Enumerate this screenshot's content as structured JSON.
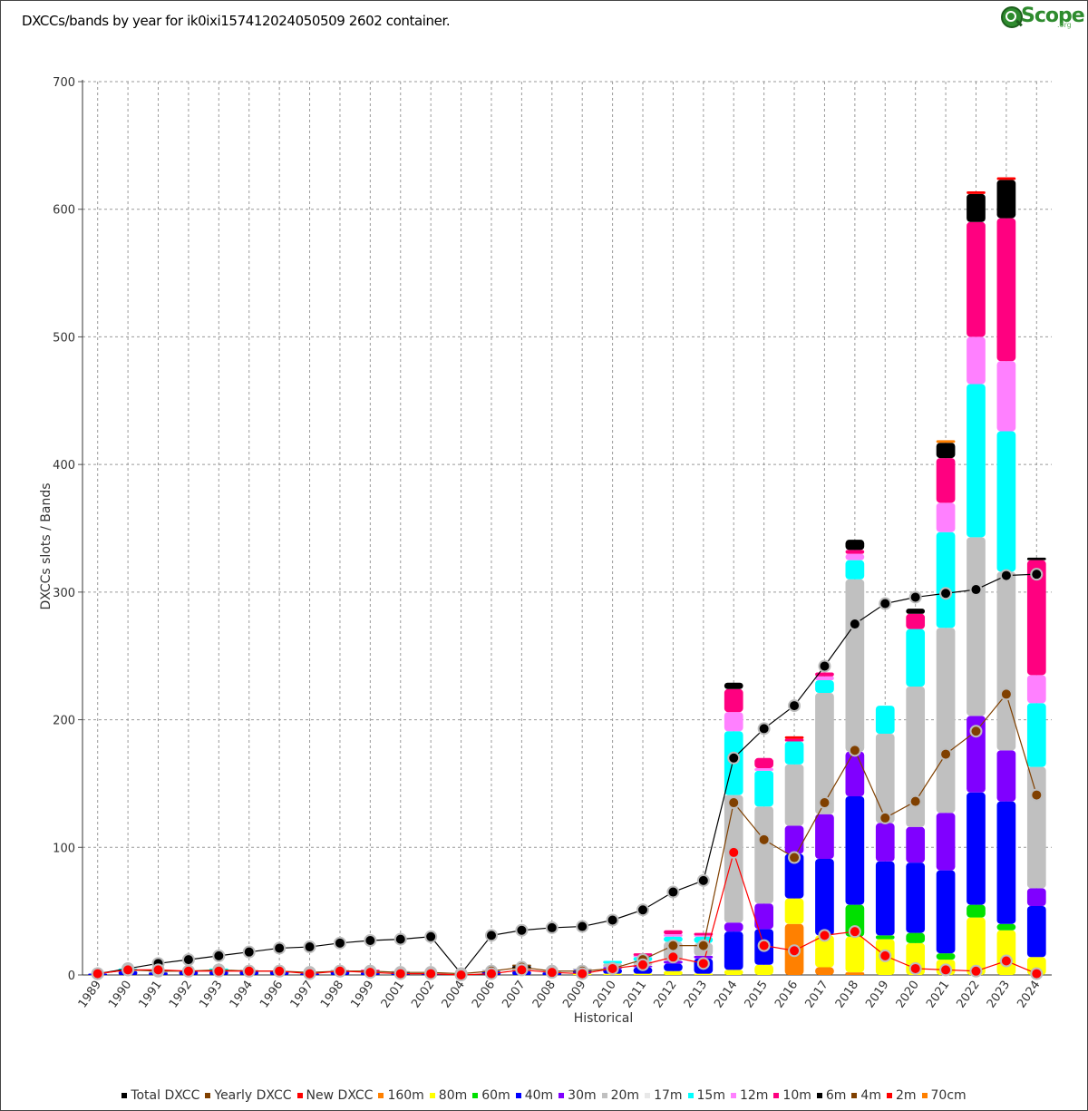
{
  "chart_data": {
    "type": "bar",
    "title": "DXCCs/bands by year for ik0ixi157412024050509 2602 container.",
    "xlabel": "Historical",
    "ylabel": "DXCCs slots / Bands",
    "ylim": [
      0,
      700
    ],
    "yticks": [
      0,
      100,
      200,
      300,
      400,
      500,
      600,
      700
    ],
    "grid": true,
    "legend_position": "bottom",
    "categories": [
      "1989",
      "1990",
      "1991",
      "1992",
      "1993",
      "1994",
      "1996",
      "1997",
      "1998",
      "1999",
      "2001",
      "2002",
      "2004",
      "2006",
      "2007",
      "2008",
      "2009",
      "2010",
      "2011",
      "2012",
      "2013",
      "2014",
      "2015",
      "2016",
      "2017",
      "2018",
      "2019",
      "2020",
      "2021",
      "2022",
      "2023",
      "2024"
    ],
    "band_series": [
      {
        "name": "160m",
        "color": "#ff8000",
        "values": [
          0,
          0,
          0,
          0,
          0,
          0,
          0,
          0,
          0,
          0,
          0,
          0,
          0,
          0,
          0,
          0,
          0,
          0,
          0,
          0,
          0,
          0,
          0,
          40,
          6,
          2,
          0,
          0,
          0,
          0,
          0,
          0
        ]
      },
      {
        "name": "80m",
        "color": "#ffff00",
        "values": [
          0,
          0,
          0,
          0,
          0,
          0,
          0,
          0,
          0,
          0,
          0,
          0,
          0,
          0,
          0,
          0,
          1,
          1,
          1,
          3,
          1,
          4,
          8,
          20,
          25,
          28,
          28,
          25,
          12,
          45,
          35,
          14
        ]
      },
      {
        "name": "60m",
        "color": "#00e000",
        "values": [
          0,
          0,
          0,
          0,
          0,
          0,
          0,
          0,
          0,
          0,
          0,
          0,
          0,
          0,
          0,
          0,
          0,
          0,
          0,
          0,
          0,
          0,
          0,
          0,
          0,
          25,
          3,
          8,
          5,
          10,
          5,
          0
        ]
      },
      {
        "name": "40m",
        "color": "#0000ff",
        "values": [
          1,
          3,
          2,
          3,
          3,
          3,
          3,
          1,
          3,
          2,
          2,
          1,
          0,
          3,
          3,
          2,
          3,
          4,
          5,
          6,
          12,
          30,
          28,
          35,
          60,
          85,
          58,
          55,
          65,
          88,
          96,
          40
        ]
      },
      {
        "name": "30m",
        "color": "#8000ff",
        "values": [
          0,
          0,
          0,
          0,
          0,
          0,
          0,
          0,
          0,
          0,
          0,
          0,
          0,
          0,
          0,
          0,
          0,
          1,
          1,
          2,
          2,
          7,
          20,
          22,
          35,
          35,
          30,
          28,
          45,
          60,
          40,
          14
        ]
      },
      {
        "name": "20m",
        "color": "#c0c0c0",
        "values": [
          0,
          1,
          1,
          0,
          1,
          1,
          0,
          0,
          1,
          1,
          1,
          0,
          0,
          1,
          2,
          1,
          1,
          3,
          4,
          15,
          10,
          100,
          76,
          48,
          95,
          135,
          70,
          110,
          145,
          140,
          140,
          95
        ]
      },
      {
        "name": "17m",
        "color": "#e8e8e8",
        "values": [
          0,
          0,
          0,
          0,
          0,
          0,
          0,
          0,
          0,
          0,
          0,
          0,
          0,
          0,
          0,
          0,
          0,
          0,
          0,
          0,
          0,
          0,
          0,
          0,
          0,
          0,
          0,
          0,
          0,
          0,
          0,
          0
        ]
      },
      {
        "name": "15m",
        "color": "#00ffff",
        "values": [
          0,
          1,
          0,
          0,
          1,
          0,
          0,
          0,
          0,
          0,
          0,
          0,
          0,
          0,
          0,
          0,
          0,
          2,
          3,
          4,
          5,
          50,
          28,
          18,
          10,
          15,
          22,
          45,
          75,
          120,
          110,
          50
        ]
      },
      {
        "name": "12m",
        "color": "#ff80ff",
        "values": [
          0,
          0,
          0,
          0,
          0,
          0,
          0,
          0,
          0,
          0,
          0,
          0,
          0,
          0,
          0,
          0,
          0,
          0,
          1,
          2,
          1,
          15,
          2,
          0,
          3,
          5,
          0,
          0,
          23,
          37,
          55,
          22
        ]
      },
      {
        "name": "10m",
        "color": "#ff0080",
        "values": [
          0,
          0,
          0,
          0,
          0,
          0,
          0,
          0,
          0,
          1,
          0,
          0,
          0,
          0,
          0,
          0,
          0,
          0,
          2,
          3,
          2,
          18,
          8,
          2,
          3,
          3,
          0,
          12,
          35,
          90,
          112,
          90
        ]
      },
      {
        "name": "6m",
        "color": "#000000",
        "values": [
          0,
          0,
          0,
          0,
          0,
          0,
          0,
          0,
          0,
          0,
          0,
          0,
          0,
          0,
          2,
          0,
          0,
          0,
          0,
          0,
          0,
          5,
          0,
          0,
          0,
          8,
          0,
          4,
          12,
          22,
          30,
          2
        ]
      },
      {
        "name": "4m",
        "color": "#804000",
        "values": [
          0,
          0,
          0,
          0,
          0,
          0,
          0,
          0,
          0,
          0,
          0,
          0,
          0,
          0,
          1,
          0,
          0,
          0,
          0,
          0,
          0,
          0,
          0,
          0,
          0,
          0,
          0,
          0,
          0,
          0,
          0,
          0
        ]
      },
      {
        "name": "2m",
        "color": "#ff0000",
        "values": [
          0,
          0,
          0,
          0,
          0,
          0,
          0,
          0,
          0,
          0,
          0,
          0,
          0,
          0,
          0,
          0,
          0,
          0,
          0,
          0,
          0,
          0,
          0,
          2,
          0,
          0,
          0,
          0,
          0,
          2,
          2,
          0
        ]
      },
      {
        "name": "70cm",
        "color": "#ff8000",
        "values": [
          0,
          0,
          0,
          0,
          0,
          0,
          0,
          0,
          0,
          0,
          0,
          0,
          0,
          0,
          0,
          0,
          0,
          0,
          0,
          0,
          0,
          0,
          0,
          0,
          0,
          0,
          0,
          0,
          2,
          0,
          0,
          0
        ]
      }
    ],
    "line_series": [
      {
        "name": "Total DXCC",
        "color": "#000000",
        "values": [
          1,
          5,
          9,
          12,
          15,
          18,
          21,
          22,
          25,
          27,
          28,
          30,
          1,
          31,
          35,
          37,
          38,
          43,
          51,
          65,
          74,
          170,
          193,
          211,
          242,
          275,
          291,
          296,
          299,
          302,
          313,
          314
        ]
      },
      {
        "name": "Yearly DXCC",
        "color": "#804000",
        "values": [
          1,
          4,
          3,
          3,
          4,
          3,
          3,
          2,
          3,
          3,
          2,
          2,
          1,
          3,
          6,
          3,
          3,
          5,
          12,
          23,
          23,
          135,
          106,
          92,
          135,
          176,
          123,
          136,
          173,
          191,
          220,
          141
        ]
      },
      {
        "name": "New DXCC",
        "color": "#ff0000",
        "values": [
          1,
          4,
          4,
          3,
          3,
          3,
          3,
          1,
          3,
          2,
          1,
          1,
          0,
          1,
          4,
          2,
          1,
          5,
          8,
          14,
          9,
          96,
          23,
          19,
          31,
          34,
          15,
          5,
          4,
          3,
          11,
          1
        ]
      }
    ]
  },
  "legend": [
    {
      "label": "Total DXCC",
      "color": "#000000"
    },
    {
      "label": "Yearly DXCC",
      "color": "#804000"
    },
    {
      "label": "New DXCC",
      "color": "#ff0000"
    },
    {
      "label": "160m",
      "color": "#ff8000"
    },
    {
      "label": "80m",
      "color": "#ffff00"
    },
    {
      "label": "60m",
      "color": "#00e000"
    },
    {
      "label": "40m",
      "color": "#0000ff"
    },
    {
      "label": "30m",
      "color": "#8000ff"
    },
    {
      "label": "20m",
      "color": "#c0c0c0"
    },
    {
      "label": "17m",
      "color": "#e8e8e8"
    },
    {
      "label": "15m",
      "color": "#00ffff"
    },
    {
      "label": "12m",
      "color": "#ff80ff"
    },
    {
      "label": "10m",
      "color": "#ff0080"
    },
    {
      "label": "6m",
      "color": "#000000"
    },
    {
      "label": "4m",
      "color": "#804000"
    },
    {
      "label": "2m",
      "color": "#ff0000"
    },
    {
      "label": "70cm",
      "color": "#ff8000"
    }
  ],
  "logo": {
    "word": "Scope",
    "suffix": ".org",
    "icon": "magnifier-icon"
  }
}
